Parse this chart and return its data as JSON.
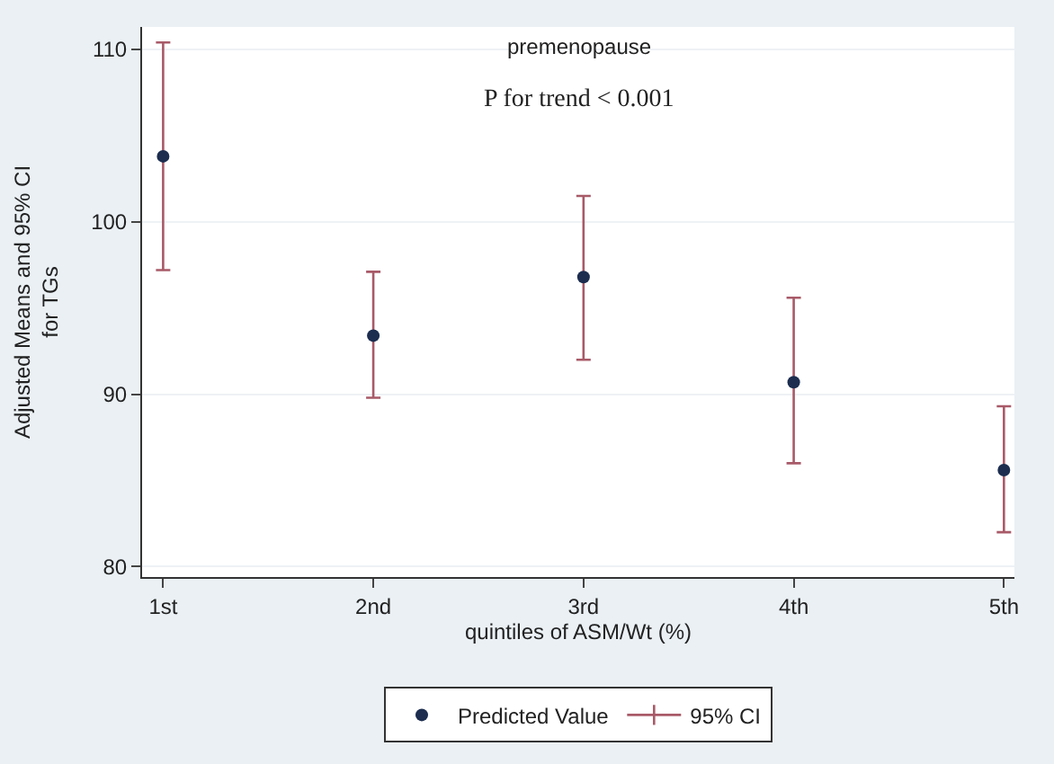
{
  "chart_data": {
    "type": "scatter",
    "title": "premenopause",
    "xlabel": "quintiles of ASM/Wt (%)",
    "ylabel": "Adjusted Means and 95% CI\nfor TGs",
    "annotations": [
      "P for trend < 0.001"
    ],
    "categories": [
      "1st",
      "2nd",
      "3rd",
      "4th",
      "5th"
    ],
    "series": [
      {
        "name": "Predicted Value",
        "marker": "circle",
        "color": "#1c2d4f",
        "values": [
          103.8,
          93.4,
          96.8,
          90.7,
          85.6
        ],
        "errors": [
          [
            97.2,
            110.4
          ],
          [
            89.8,
            97.1
          ],
          [
            92.0,
            101.5
          ],
          [
            86.0,
            95.6
          ],
          [
            82.0,
            89.3
          ]
        ]
      },
      {
        "name": "95% CI",
        "color": "#a85a68",
        "values": [
          null,
          null,
          null,
          null,
          null
        ]
      }
    ],
    "ylim": [
      79.4,
      111.3
    ],
    "yticks": [
      80,
      90,
      100,
      110
    ],
    "grid": "y",
    "legend": "bottom"
  }
}
